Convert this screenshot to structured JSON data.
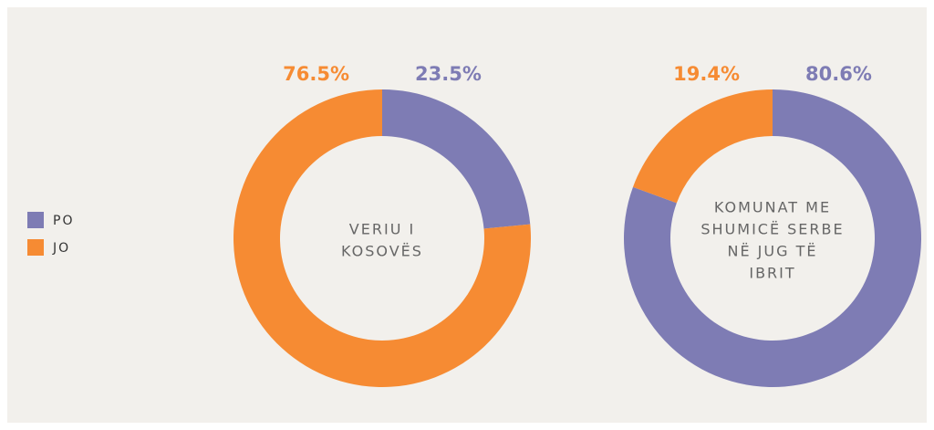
{
  "chart_data": [
    {
      "type": "donut",
      "categories": [
        "PO",
        "JO"
      ],
      "values": [
        23.5,
        76.5
      ],
      "value_labels": [
        "23.5%",
        "76.5%"
      ],
      "colors": [
        "#7e7cb4",
        "#f68b33"
      ],
      "center_label": [
        "VERIU I",
        "KOSOVËS"
      ]
    },
    {
      "type": "donut",
      "categories": [
        "PO",
        "JO"
      ],
      "values": [
        80.6,
        19.4
      ],
      "value_labels": [
        "80.6%",
        "19.4%"
      ],
      "colors": [
        "#7e7cb4",
        "#f68b33"
      ],
      "center_label": [
        "KOMUNAT ME",
        "SHUMICË SERBE",
        "NË JUG TË",
        "IBRIT"
      ]
    }
  ]
}
